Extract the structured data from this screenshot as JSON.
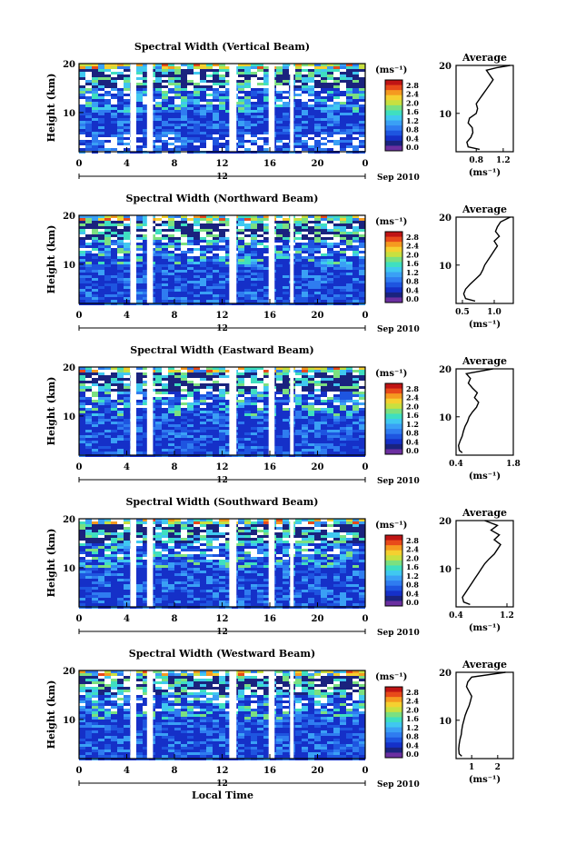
{
  "chart_data": [
    {
      "type": "heatmap",
      "title": "Spectral Width (Vertical Beam)",
      "ylabel": "Height (km)",
      "xlim": [
        0,
        24
      ],
      "ylim": [
        2,
        20
      ],
      "x_ticks": [
        "0",
        "4",
        "8",
        "12",
        "16",
        "20",
        "0"
      ],
      "y_ticks": [
        "20",
        "10"
      ],
      "date_marker": "12",
      "date_label": "Sep 2010",
      "colorbar": {
        "unit": "(ms⁻¹)",
        "ticks": [
          "2.8",
          "2.4",
          "2.0",
          "1.6",
          "1.2",
          "0.8",
          "0.4",
          "0.0"
        ]
      },
      "data_gaps_hours": [
        [
          4.3,
          4.8
        ],
        [
          5.7,
          6.2
        ],
        [
          12.6,
          13.2
        ],
        [
          15.9,
          16.4
        ],
        [
          17.7,
          18.0
        ]
      ],
      "profile": {
        "title": "Average",
        "xlabel": "(ms⁻¹)",
        "xlim": [
          0.5,
          1.35
        ],
        "x_ticks": [
          "0.8",
          "1.2"
        ],
        "y_ticks": [
          "20",
          "10"
        ],
        "height_km": [
          2.5,
          3,
          4,
          5,
          6,
          7,
          8,
          9,
          10,
          11,
          12,
          13,
          14,
          15,
          16,
          17,
          18,
          19,
          19.5,
          20
        ],
        "values": [
          0.85,
          0.68,
          0.66,
          0.72,
          0.75,
          0.74,
          0.68,
          0.7,
          0.8,
          0.82,
          0.8,
          0.85,
          0.9,
          0.95,
          1.0,
          1.05,
          1.0,
          0.95,
          1.1,
          1.3
        ]
      }
    },
    {
      "type": "heatmap",
      "title": "Spectral Width (Northward Beam)",
      "ylabel": "Height (km)",
      "xlim": [
        0,
        24
      ],
      "ylim": [
        2,
        20
      ],
      "x_ticks": [
        "0",
        "4",
        "8",
        "12",
        "16",
        "20",
        "0"
      ],
      "y_ticks": [
        "20",
        "10"
      ],
      "date_marker": "12",
      "date_label": "Sep 2010",
      "colorbar": {
        "unit": "(ms⁻¹)",
        "ticks": [
          "2.8",
          "2.4",
          "2.0",
          "1.6",
          "1.2",
          "0.8",
          "0.4",
          "0.0"
        ]
      },
      "data_gaps_hours": [
        [
          4.3,
          4.8
        ],
        [
          5.7,
          6.2
        ],
        [
          12.6,
          13.2
        ],
        [
          15.9,
          16.4
        ],
        [
          17.7,
          18.0
        ]
      ],
      "profile": {
        "title": "Average",
        "xlabel": "(ms⁻¹)",
        "xlim": [
          0.4,
          1.3
        ],
        "x_ticks": [
          "0.5",
          "1.0"
        ],
        "y_ticks": [
          "20",
          "10"
        ],
        "height_km": [
          2.5,
          3,
          4,
          5,
          6,
          7,
          8,
          9,
          10,
          11,
          12,
          13,
          14,
          15,
          16,
          17,
          18,
          19,
          20
        ],
        "values": [
          0.7,
          0.55,
          0.52,
          0.55,
          0.62,
          0.7,
          0.78,
          0.82,
          0.85,
          0.9,
          0.95,
          1.0,
          1.05,
          1.0,
          1.08,
          1.02,
          1.05,
          1.1,
          1.25
        ]
      }
    },
    {
      "type": "heatmap",
      "title": "Spectral Width (Eastward Beam)",
      "ylabel": "Height (km)",
      "xlim": [
        0,
        24
      ],
      "ylim": [
        2,
        20
      ],
      "x_ticks": [
        "0",
        "4",
        "8",
        "12",
        "16",
        "20",
        "0"
      ],
      "y_ticks": [
        "20",
        "10"
      ],
      "date_marker": "12",
      "date_label": "Sep 2010",
      "colorbar": {
        "unit": "(ms⁻¹)",
        "ticks": [
          "2.8",
          "2.4",
          "2.0",
          "1.6",
          "1.2",
          "0.8",
          "0.4",
          "0.0"
        ]
      },
      "data_gaps_hours": [
        [
          4.3,
          4.8
        ],
        [
          5.7,
          6.2
        ],
        [
          12.6,
          13.2
        ],
        [
          15.9,
          16.4
        ],
        [
          17.7,
          18.0
        ]
      ],
      "profile": {
        "title": "Average",
        "xlabel": "(ms⁻¹)",
        "xlim": [
          0.4,
          1.8
        ],
        "x_ticks": [
          "0.4",
          "1.8"
        ],
        "y_ticks": [
          "20",
          "10"
        ],
        "height_km": [
          2.5,
          3,
          4,
          5,
          6,
          7,
          8,
          9,
          10,
          11,
          12,
          13,
          14,
          15,
          16,
          17,
          18,
          19,
          20
        ],
        "values": [
          0.55,
          0.48,
          0.46,
          0.5,
          0.55,
          0.58,
          0.62,
          0.68,
          0.72,
          0.8,
          0.9,
          0.95,
          0.85,
          0.92,
          0.8,
          0.7,
          0.75,
          0.65,
          1.3
        ]
      }
    },
    {
      "type": "heatmap",
      "title": "Spectral Width (Southward Beam)",
      "ylabel": "Height (km)",
      "xlim": [
        0,
        24
      ],
      "ylim": [
        2,
        20
      ],
      "x_ticks": [
        "0",
        "4",
        "8",
        "12",
        "16",
        "20",
        "0"
      ],
      "y_ticks": [
        "20",
        "10"
      ],
      "date_marker": "12",
      "date_label": "Sep 2010",
      "colorbar": {
        "unit": "(ms⁻¹)",
        "ticks": [
          "2.8",
          "2.4",
          "2.0",
          "1.6",
          "1.2",
          "0.8",
          "0.4",
          "0.0"
        ]
      },
      "data_gaps_hours": [
        [
          4.3,
          4.8
        ],
        [
          5.7,
          6.2
        ],
        [
          12.6,
          13.2
        ],
        [
          15.9,
          16.4
        ],
        [
          17.7,
          18.0
        ]
      ],
      "profile": {
        "title": "Average",
        "xlabel": "(ms⁻¹)",
        "xlim": [
          0.4,
          1.3
        ],
        "x_ticks": [
          "0.4",
          "1.2"
        ],
        "y_ticks": [
          "20",
          "10"
        ],
        "height_km": [
          2.5,
          3,
          4,
          5,
          6,
          7,
          8,
          9,
          10,
          11,
          12,
          13,
          14,
          15,
          16,
          17,
          18,
          19,
          20
        ],
        "values": [
          0.62,
          0.52,
          0.5,
          0.55,
          0.6,
          0.65,
          0.7,
          0.75,
          0.8,
          0.85,
          0.92,
          1.0,
          1.05,
          1.1,
          1.0,
          1.08,
          0.95,
          1.05,
          0.85
        ]
      }
    },
    {
      "type": "heatmap",
      "title": "Spectral Width (Westward Beam)",
      "ylabel": "Height (km)",
      "xlabel": "Local Time",
      "xlim": [
        0,
        24
      ],
      "ylim": [
        2,
        20
      ],
      "x_ticks": [
        "0",
        "4",
        "8",
        "12",
        "16",
        "20",
        "0"
      ],
      "y_ticks": [
        "20",
        "10"
      ],
      "date_marker": "12",
      "date_label": "Sep 2010",
      "colorbar": {
        "unit": "(ms⁻¹)",
        "ticks": [
          "2.8",
          "2.4",
          "2.0",
          "1.6",
          "1.2",
          "0.8",
          "0.4",
          "0.0"
        ]
      },
      "data_gaps_hours": [
        [
          4.3,
          4.8
        ],
        [
          5.7,
          6.2
        ],
        [
          12.6,
          13.2
        ],
        [
          15.9,
          16.4
        ],
        [
          17.7,
          18.0
        ]
      ],
      "profile": {
        "title": "Average",
        "xlabel": "(ms⁻¹)",
        "xlim": [
          0.4,
          2.6
        ],
        "x_ticks": [
          "1",
          "2"
        ],
        "y_ticks": [
          "20",
          "10"
        ],
        "height_km": [
          2.5,
          3,
          4,
          5,
          6,
          7,
          8,
          9,
          10,
          11,
          12,
          13,
          14,
          15,
          16,
          17,
          18,
          19,
          20
        ],
        "values": [
          0.62,
          0.52,
          0.5,
          0.52,
          0.55,
          0.6,
          0.62,
          0.65,
          0.7,
          0.75,
          0.82,
          0.9,
          0.95,
          1.0,
          0.9,
          0.8,
          0.85,
          1.0,
          2.3
        ]
      }
    }
  ]
}
